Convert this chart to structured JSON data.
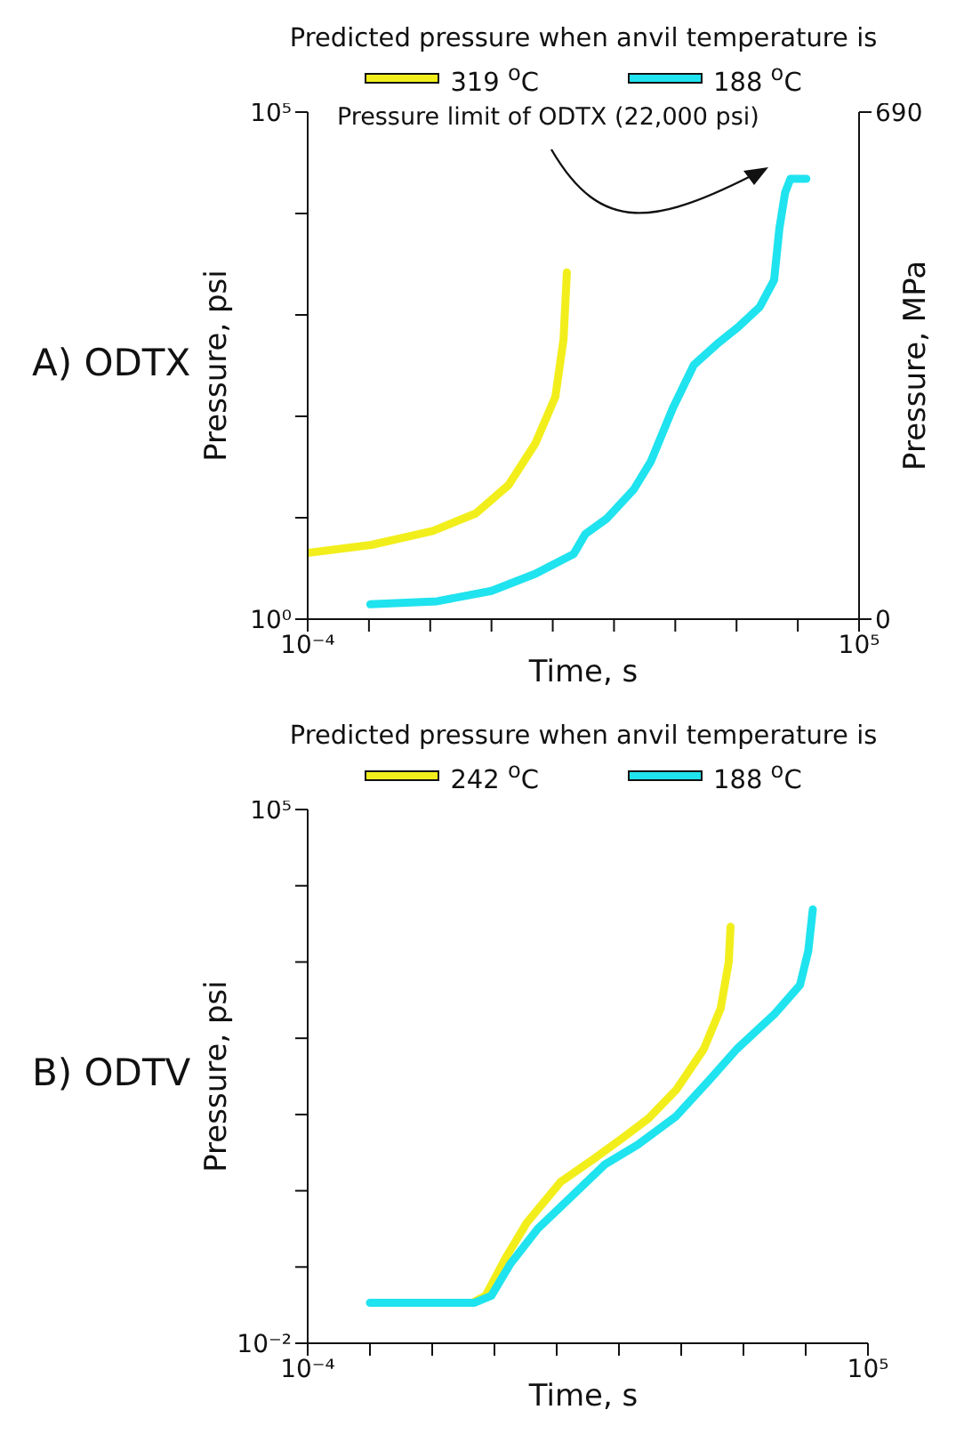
{
  "chart_data": [
    {
      "type": "line",
      "title": "A) ODTX",
      "legend_title": "Predicted pressure when anvil temperature is",
      "legend": "top",
      "xlabel": "Time, s",
      "ylabel": "Pressure, psi",
      "y2label": "Pressure, MPa",
      "log": "xy",
      "grid": false,
      "marker": "none",
      "line_style": "solid",
      "xlim": [
        0.0001,
        100000
      ],
      "xticks": [
        {
          "value": 0.0001,
          "label": "10⁻⁴"
        },
        {
          "value": 0.001,
          "label": null
        },
        {
          "value": 0.01,
          "label": null
        },
        {
          "value": 0.1,
          "label": null
        },
        {
          "value": 1,
          "label": null
        },
        {
          "value": 10,
          "label": null
        },
        {
          "value": 100,
          "label": null
        },
        {
          "value": 1000,
          "label": null
        },
        {
          "value": 10000,
          "label": null
        },
        {
          "value": 100000,
          "label": "10⁵"
        }
      ],
      "ylim": [
        1,
        100000
      ],
      "yticks": [
        {
          "value": 1,
          "label": "10⁰"
        },
        {
          "value": 10,
          "label": null
        },
        {
          "value": 100,
          "label": null
        },
        {
          "value": 1000,
          "label": null
        },
        {
          "value": 10000,
          "label": null
        },
        {
          "value": 100000,
          "label": "10⁵"
        }
      ],
      "y2lim": [
        0,
        690
      ],
      "y2ticks": [
        0,
        690
      ],
      "annotations": [
        {
          "text": "Pressure limit of ODTX (22,000 psi)",
          "x": 5000,
          "y": 22000
        }
      ],
      "series": [
        {
          "name": "319 $^{o}$C",
          "color": "#f2ee1c",
          "x": [
            0.0001,
            0.0011,
            0.011,
            0.055,
            0.19,
            0.52,
            1.1,
            1.5,
            1.7
          ],
          "values": [
            4.5,
            5.4,
            7.4,
            11,
            21,
            54,
            155,
            575,
            2630
          ]
        },
        {
          "name": "188 $^{o}$C",
          "color": "#1fe3ee",
          "x": [
            0.00105,
            0.013,
            0.1,
            0.52,
            2.2,
            3.4,
            7.6,
            21,
            40,
            91,
            200,
            470,
            1070,
            2400,
            4100,
            5000,
            6200,
            7600,
            13800
          ],
          "values": [
            1.4,
            1.5,
            1.9,
            2.8,
            4.4,
            6.9,
            9.8,
            19,
            36,
            120,
            320,
            510,
            760,
            1200,
            2200,
            7100,
            16000,
            22000,
            22000
          ]
        }
      ]
    },
    {
      "type": "line",
      "title": "B) ODTV",
      "legend_title": "Predicted pressure when anvil temperature is",
      "legend": "top",
      "xlabel": "Time, s",
      "ylabel": "Pressure, psi",
      "log": "xy",
      "grid": false,
      "marker": "none",
      "line_style": "solid",
      "xlim": [
        0.0001,
        100000
      ],
      "xticks": [
        {
          "value": 0.0001,
          "label": "10⁻⁴"
        },
        {
          "value": 0.001,
          "label": null
        },
        {
          "value": 0.01,
          "label": null
        },
        {
          "value": 0.1,
          "label": null
        },
        {
          "value": 1,
          "label": null
        },
        {
          "value": 10,
          "label": null
        },
        {
          "value": 100,
          "label": null
        },
        {
          "value": 1000,
          "label": null
        },
        {
          "value": 10000,
          "label": null
        },
        {
          "value": 100000,
          "label": "10⁵"
        }
      ],
      "ylim": [
        0.01,
        100000
      ],
      "yticks": [
        {
          "value": 0.01,
          "label": "10⁻²"
        },
        {
          "value": 0.1,
          "label": null
        },
        {
          "value": 1,
          "label": null
        },
        {
          "value": 10,
          "label": null
        },
        {
          "value": 100,
          "label": null
        },
        {
          "value": 1000,
          "label": null
        },
        {
          "value": 10000,
          "label": null
        },
        {
          "value": 100000,
          "label": "10⁵"
        }
      ],
      "series": [
        {
          "name": "242 $^{o}$C",
          "color": "#f2ee1c",
          "x": [
            0.044,
            0.072,
            0.15,
            0.33,
            1.15,
            3.9,
            11,
            30,
            83,
            230,
            430,
            580,
            620
          ],
          "values": [
            0.034,
            0.042,
            0.13,
            0.38,
            1.3,
            2.6,
            4.8,
            8.9,
            21,
            72,
            245,
            1000,
            2900
          ]
        },
        {
          "name": "188 $^{o}$C",
          "color": "#1fe3ee",
          "x": [
            0.001,
            0.048,
            0.089,
            0.18,
            0.5,
            1.7,
            5.9,
            20,
            83,
            280,
            780,
            3200,
            8100,
            11000,
            13000
          ],
          "values": [
            0.034,
            0.034,
            0.042,
            0.11,
            0.32,
            0.83,
            2.2,
            4,
            9.5,
            28,
            72,
            210,
            500,
            1400,
            4900
          ]
        }
      ]
    }
  ]
}
